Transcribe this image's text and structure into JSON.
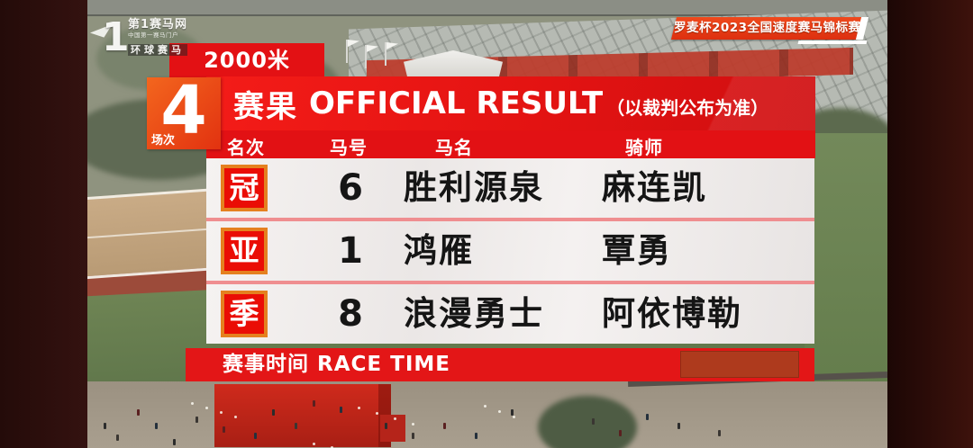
{
  "logo": {
    "mark": "1",
    "title": "第1赛马网",
    "subtitle": "中国第一赛马门户",
    "tagline": "环球赛马"
  },
  "event_banner": {
    "text": "罗麦杯2023全国速度赛马锦标赛"
  },
  "race_panel": {
    "distance": "2000米",
    "race_number": "4",
    "race_number_label": "场次",
    "title_cn": "赛果",
    "title_en": "OFFICIAL RESULT",
    "title_note": "（以裁判公布为准）",
    "columns": {
      "rank": "名次",
      "horse_number": "马号",
      "horse_name": "马名",
      "jockey": "骑师"
    },
    "results": [
      {
        "rank_badge": "冠",
        "horse_number": "6",
        "horse_name": "胜利源泉",
        "jockey": "麻连凯"
      },
      {
        "rank_badge": "亚",
        "horse_number": "1",
        "horse_name": "鸿雁",
        "jockey": "覃勇"
      },
      {
        "rank_badge": "季",
        "horse_number": "8",
        "horse_name": "浪漫勇士",
        "jockey": "阿依博勒"
      }
    ],
    "footer": {
      "label_cn": "赛事时间",
      "label_en": "RACE TIME"
    }
  },
  "colors": {
    "panel_red": "#e31114",
    "race_box_orange": "#f3661e",
    "badge_red": "#ea0d05",
    "badge_border_orange": "#e5801f",
    "row_background": "#f1eeec",
    "row_separator": "#ef8e90",
    "time_placeholder": "#ae3a1d",
    "banner_orange_red": "#e8421a",
    "side_band_maroon": "#2f100e"
  }
}
